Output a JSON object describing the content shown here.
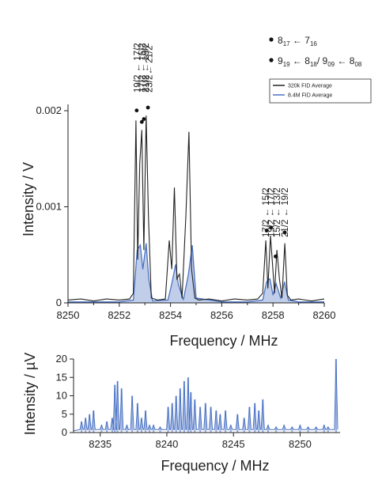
{
  "chart_data": [
    {
      "type": "line",
      "xlabel": "Frequency / MHz",
      "ylabel": "Intensity / V",
      "xlim": [
        8250,
        8260
      ],
      "ylim": [
        0,
        0.002
      ],
      "x_ticks": [
        "8250",
        "8252",
        "8254",
        "8256",
        "8258",
        "8260"
      ],
      "y_ticks": [
        "0",
        "0.001",
        "0.002"
      ],
      "grid": false,
      "legend_position": "top-right",
      "series": [
        {
          "name": "320k FID Average",
          "color": "#222222",
          "x": [
            8250.0,
            8250.5,
            8251.0,
            8251.5,
            8252.0,
            8252.4,
            8252.55,
            8252.65,
            8252.72,
            8252.8,
            8252.88,
            8252.96,
            8253.05,
            8253.14,
            8253.25,
            8253.5,
            8253.8,
            8253.95,
            8254.05,
            8254.15,
            8254.25,
            8254.35,
            8254.45,
            8254.6,
            8254.72,
            8254.82,
            8254.95,
            8255.1,
            8255.5,
            8256.0,
            8256.5,
            8257.0,
            8257.4,
            8257.6,
            8257.72,
            8257.8,
            8257.9,
            8257.98,
            8258.06,
            8258.15,
            8258.25,
            8258.35,
            8258.46,
            8258.56,
            8258.7,
            8259.0,
            8259.5,
            8260.0
          ],
          "y": [
            3e-05,
            4e-05,
            2e-05,
            4e-05,
            3e-05,
            4e-05,
            0.0001,
            0.0019,
            0.00045,
            0.00145,
            0.0018,
            0.00055,
            0.00195,
            0.0009,
            5e-05,
            3e-05,
            4e-05,
            0.00065,
            0.00035,
            0.0012,
            0.00025,
            0.0003,
            5e-05,
            0.0009,
            0.00178,
            0.00035,
            5e-05,
            3e-05,
            4e-05,
            2e-05,
            4e-05,
            3e-05,
            4e-05,
            0.0001,
            0.00065,
            0.00015,
            0.0007,
            0.0004,
            0.0001,
            0.00055,
            0.00025,
            5e-05,
            0.00062,
            8e-05,
            3e-05,
            4e-05,
            2e-05,
            4e-05
          ]
        },
        {
          "name": "8.4M FID Average",
          "color": "#4a72c4",
          "x": [
            8250.0,
            8251.0,
            8252.0,
            8252.55,
            8252.7,
            8252.82,
            8252.92,
            8253.05,
            8253.15,
            8253.3,
            8253.9,
            8254.05,
            8254.2,
            8254.3,
            8254.5,
            8254.7,
            8254.85,
            8255.0,
            8256.0,
            8257.0,
            8257.6,
            8257.75,
            8257.88,
            8258.0,
            8258.12,
            8258.3,
            8258.45,
            8258.6,
            8259.0,
            8260.0
          ],
          "y": [
            1e-05,
            1e-05,
            1e-05,
            3e-05,
            0.00055,
            0.0006,
            0.00035,
            0.00062,
            0.00025,
            2e-05,
            3e-05,
            0.0002,
            0.0004,
            0.0002,
            3e-05,
            0.0003,
            0.0006,
            5e-05,
            1e-05,
            1e-05,
            3e-05,
            0.00022,
            0.00025,
            8e-05,
            0.0002,
            5e-05,
            0.00022,
            3e-05,
            1e-05,
            1e-05
          ]
        }
      ],
      "annotations": [
        {
          "text": "19/2 ← 17/2",
          "x": 8252.7
        },
        {
          "text": "17/2 ← 15/2",
          "x": 8252.88
        },
        {
          "text": "21/2 ← 19/2",
          "x": 8253.02
        },
        {
          "text": "23/2← 21/2",
          "x": 8253.16
        },
        {
          "text": "17/2 ← 15/2",
          "x": 8257.72
        },
        {
          "text": "19/2 ← 17/2",
          "x": 8257.92
        },
        {
          "text": "15/2 ← 13/2",
          "x": 8258.15
        },
        {
          "text": "21/2 ← 19/2",
          "x": 8258.46
        }
      ],
      "markers": [
        {
          "x": 8252.68,
          "y": 0.00197
        },
        {
          "x": 8252.88,
          "y": 0.00185
        },
        {
          "x": 8252.96,
          "y": 0.00188
        },
        {
          "x": 8253.12,
          "y": 0.002
        },
        {
          "x": 8257.75,
          "y": 0.00072
        },
        {
          "x": 8257.92,
          "y": 0.00075
        },
        {
          "x": 8258.1,
          "y": 0.00045
        },
        {
          "x": 8258.46,
          "y": 0.0007
        }
      ],
      "dot_legend": [
        {
          "main": "8",
          "sub": "17",
          "tail_main": " ← 7",
          "tail_sub": "16"
        },
        {
          "main": "9",
          "sub": "19",
          "tail_main": " ← 8",
          "tail_sub": "18",
          "extra": [
            {
              "m": "/ 9",
              "s": "09"
            },
            {
              "m": " ← 8",
              "s": "08"
            }
          ]
        }
      ]
    },
    {
      "type": "bar",
      "xlabel": "Frequency / MHz",
      "ylabel": "Intensity / µV",
      "xlim": [
        8233,
        8253
      ],
      "ylim": [
        0,
        20
      ],
      "x_ticks": [
        "8235",
        "8240",
        "8245",
        "8250"
      ],
      "y_ticks": [
        "0",
        "5",
        "10",
        "15",
        "20"
      ],
      "color": "#4a72c4",
      "grid": false,
      "x": [
        8233.6,
        8233.9,
        8234.2,
        8234.5,
        8235.1,
        8235.5,
        8235.9,
        8236.1,
        8236.3,
        8236.6,
        8237.0,
        8237.4,
        8237.8,
        8238.1,
        8238.4,
        8238.7,
        8239.0,
        8239.5,
        8240.1,
        8240.4,
        8240.7,
        8241.0,
        8241.3,
        8241.6,
        8241.8,
        8242.1,
        8242.5,
        8242.9,
        8243.3,
        8243.7,
        8244.0,
        8244.4,
        8244.8,
        8245.3,
        8245.8,
        8246.2,
        8246.6,
        8246.9,
        8247.2,
        8247.6,
        8248.2,
        8248.8,
        8249.4,
        8250.0,
        8250.6,
        8251.2,
        8251.8,
        8252.1,
        8252.7
      ],
      "values": [
        3,
        4,
        5,
        6,
        2,
        3,
        4,
        13,
        14,
        12,
        2,
        10,
        8,
        4,
        6,
        2,
        2,
        1.5,
        7,
        8,
        10,
        12,
        14,
        15,
        11,
        9,
        7,
        8,
        7,
        6,
        5,
        6,
        2,
        5,
        4,
        7,
        8,
        6,
        9,
        2,
        1.5,
        2,
        1.5,
        2,
        1.5,
        1.5,
        2,
        1.5,
        20
      ]
    }
  ]
}
